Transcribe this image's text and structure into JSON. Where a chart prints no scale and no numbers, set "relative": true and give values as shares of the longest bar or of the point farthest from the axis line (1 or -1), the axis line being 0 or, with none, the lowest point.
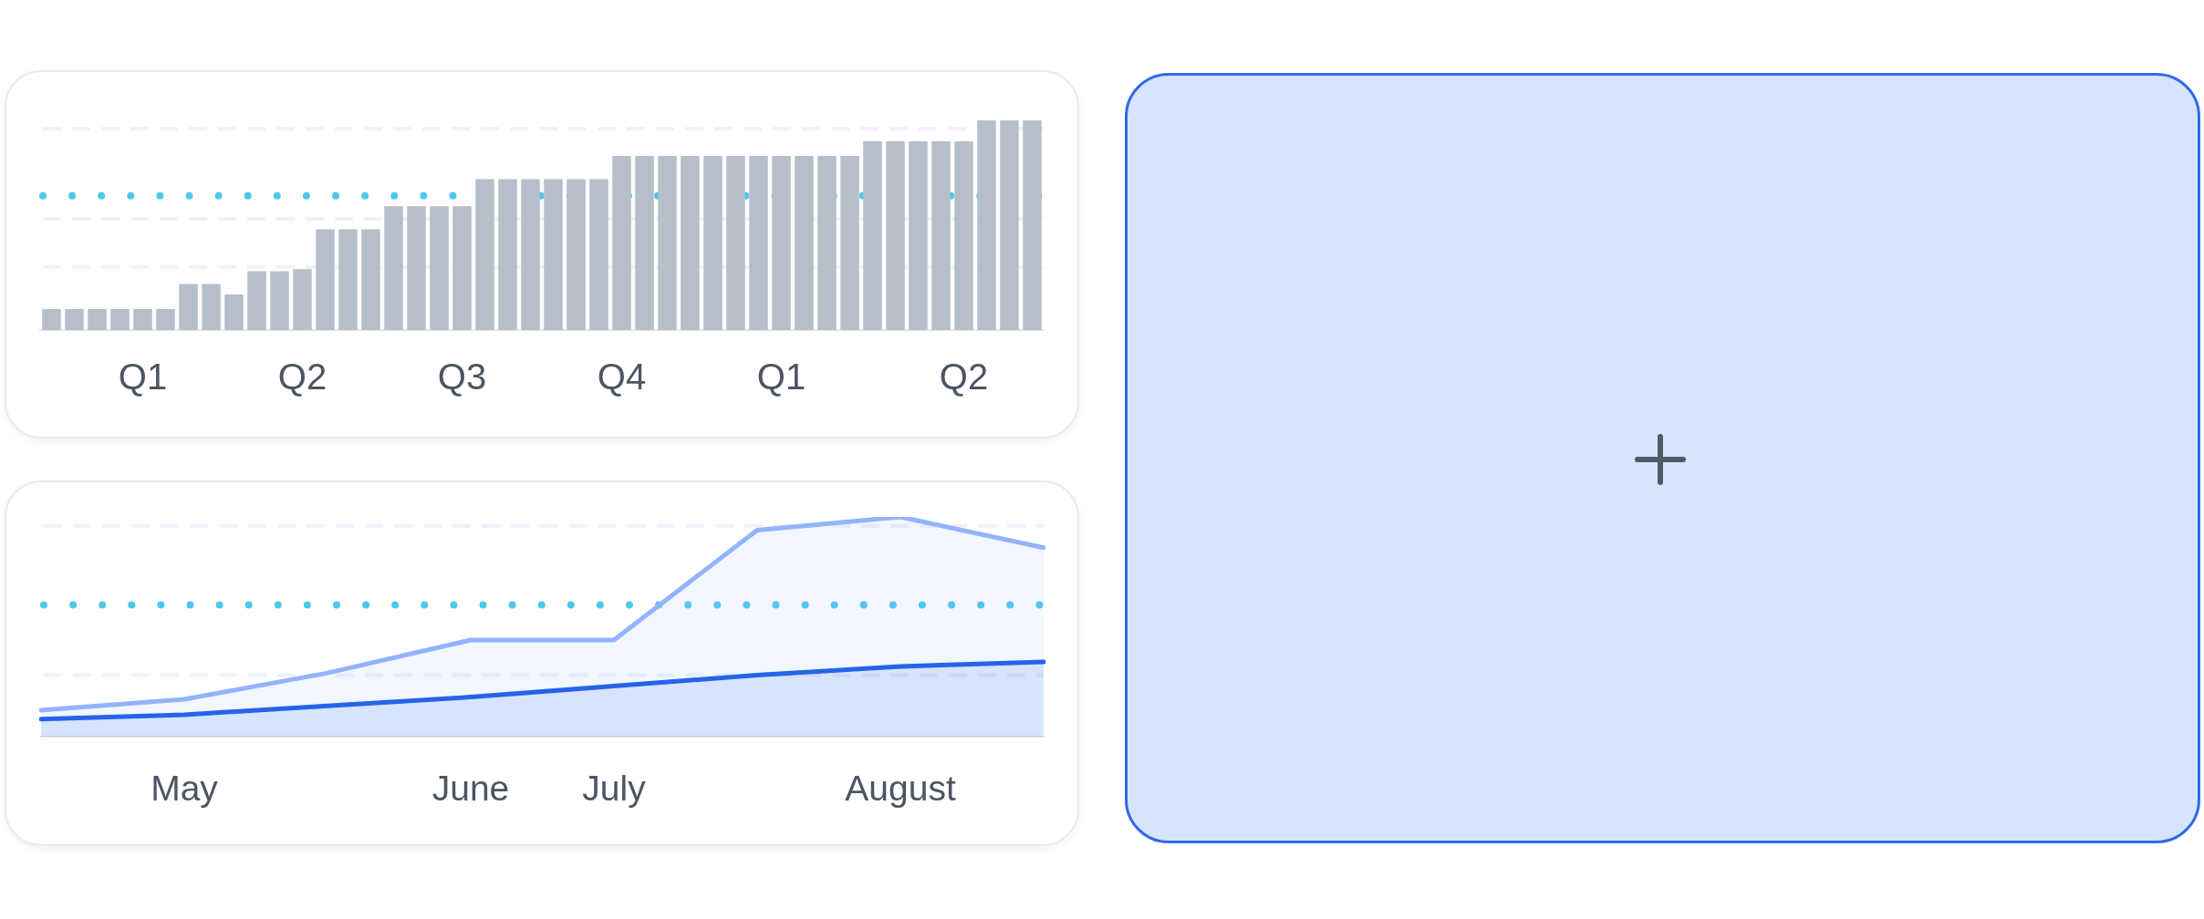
{
  "chart_data": [
    {
      "type": "bar",
      "relative": true,
      "categories": [
        null,
        null,
        null,
        null,
        "Q1",
        null,
        null,
        null,
        null,
        null,
        null,
        "Q2",
        null,
        null,
        null,
        null,
        null,
        null,
        "Q3",
        null,
        null,
        null,
        null,
        null,
        null,
        "Q4",
        null,
        null,
        null,
        null,
        null,
        null,
        "Q1",
        null,
        null,
        null,
        null,
        null,
        null,
        null,
        "Q2",
        null,
        null,
        null
      ],
      "values": [
        0.1,
        0.1,
        0.1,
        0.1,
        0.1,
        0.1,
        0.22,
        0.22,
        0.17,
        0.28,
        0.28,
        0.29,
        0.48,
        0.48,
        0.48,
        0.59,
        0.59,
        0.59,
        0.59,
        0.72,
        0.72,
        0.72,
        0.72,
        0.72,
        0.72,
        0.83,
        0.83,
        0.83,
        0.83,
        0.83,
        0.83,
        0.83,
        0.83,
        0.83,
        0.83,
        0.83,
        0.9,
        0.9,
        0.9,
        0.9,
        0.9,
        1,
        1,
        1
      ],
      "color": "#b6bec9",
      "ref_lines": [
        {
          "axis": "y",
          "value": 0.3,
          "color": "#eef2f9",
          "line_style": "dashed"
        },
        {
          "axis": "y",
          "value": 0.53,
          "color": "#eef2f9",
          "line_style": "dashed"
        },
        {
          "axis": "y",
          "value": 0.96,
          "color": "#eef2f9",
          "line_style": "dashed"
        },
        {
          "axis": "y",
          "value": 0.64,
          "color": "#4cc8ee",
          "line_style": "dotted"
        }
      ]
    },
    {
      "type": "area",
      "relative": true,
      "categories": [
        null,
        "May",
        null,
        "June",
        "July",
        null,
        "August",
        null
      ],
      "series": [
        {
          "color": "#93b4fd",
          "values": [
            0.12,
            0.17,
            0.29,
            0.44,
            0.44,
            0.94,
            1,
            0.86
          ]
        },
        {
          "color": "#2563eb",
          "values": [
            0.08,
            0.1,
            0.14,
            0.18,
            0.23,
            0.28,
            0.32,
            0.34
          ]
        }
      ],
      "ref_lines": [
        {
          "axis": "y",
          "value": 0.28,
          "color": "#eef2f9",
          "line_style": "dashed"
        },
        {
          "axis": "y",
          "value": 0.96,
          "color": "#eef2f9",
          "line_style": "dashed"
        },
        {
          "axis": "y",
          "value": 0.6,
          "color": "#4cc8ee",
          "line_style": "dotted"
        }
      ]
    }
  ]
}
